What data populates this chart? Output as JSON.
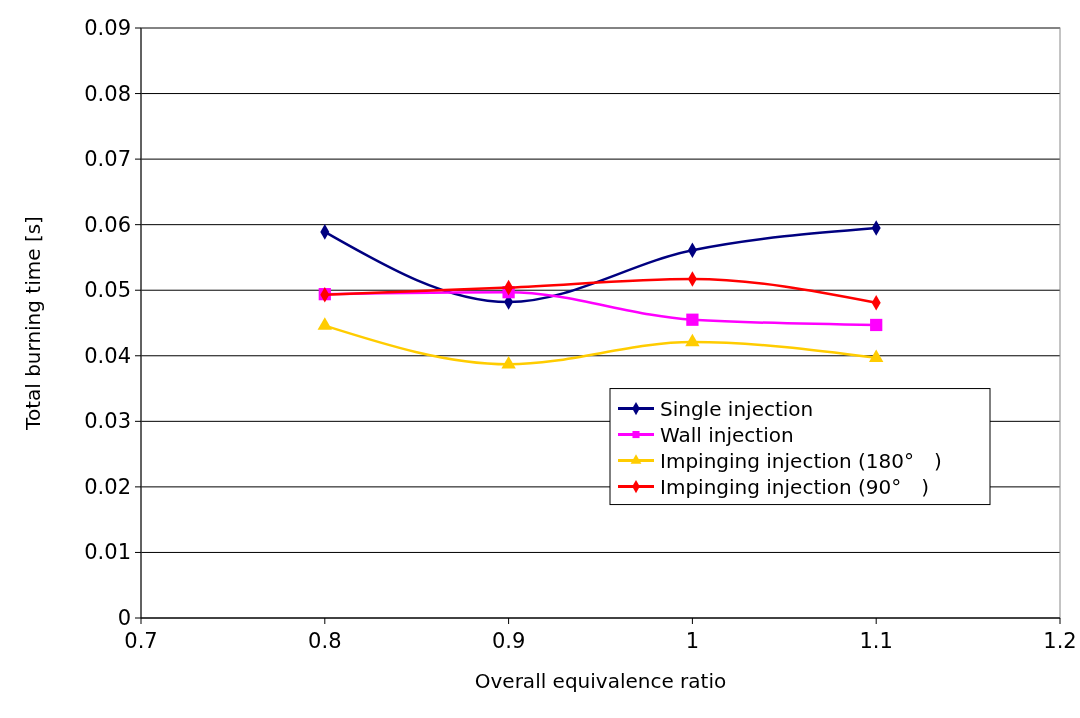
{
  "chart_data": {
    "type": "line",
    "xlabel": "Overall equivalence ratio",
    "ylabel": "Total burning time [s]",
    "x": [
      0.8,
      0.9,
      1,
      1.1
    ],
    "series": [
      {
        "name": "Single injection",
        "color": "#000080",
        "marker": "diamond",
        "values": [
          0.0589,
          0.0482,
          0.0561,
          0.0595
        ]
      },
      {
        "name": "Wall injection",
        "color": "#ff00ff",
        "marker": "square",
        "values": [
          0.0494,
          0.0497,
          0.0455,
          0.0447
        ]
      },
      {
        "name": "Impinging injection (180°　)",
        "color": "#ffcc00",
        "marker": "triangle",
        "values": [
          0.0446,
          0.0387,
          0.0421,
          0.0397
        ]
      },
      {
        "name": "Impinging injection (90°　)",
        "color": "#ff0000",
        "marker": "diamond",
        "values": [
          0.0493,
          0.0504,
          0.0517,
          0.0481
        ]
      }
    ],
    "xlim": [
      0.7,
      1.2
    ],
    "xticks": [
      0.7,
      0.8,
      0.9,
      1,
      1.1,
      1.2
    ],
    "ylim": [
      0,
      0.09
    ],
    "yticks": [
      0,
      0.01,
      0.02,
      0.03,
      0.04,
      0.05,
      0.06,
      0.07,
      0.08,
      0.09
    ],
    "grid": "y",
    "legend": "right",
    "line_style": "solid"
  }
}
